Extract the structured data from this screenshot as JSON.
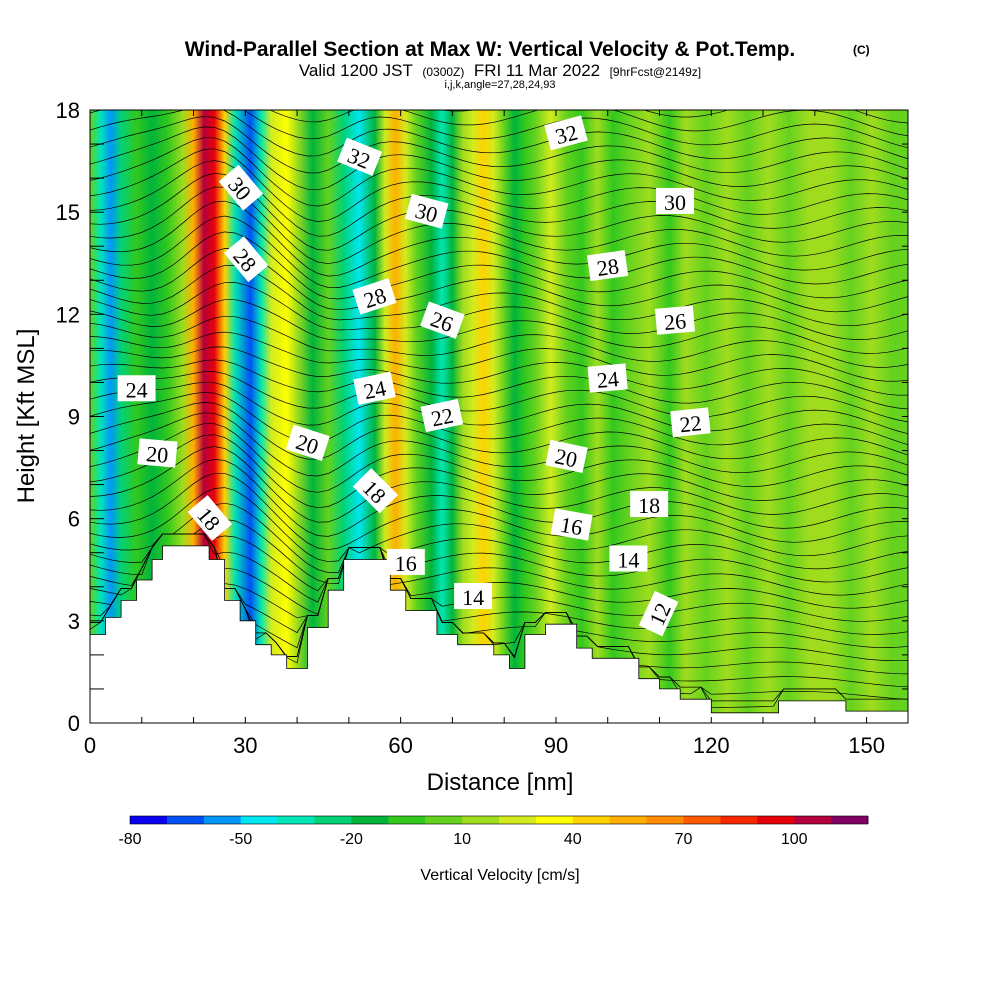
{
  "chart_data": {
    "type": "heatmap",
    "title": "Wind-Parallel Section at Max W: Vertical Velocity & Pot.Temp.",
    "title_mark": "(C)",
    "subtitle": {
      "valid": "Valid 1200 JST",
      "utc": "(0300Z)",
      "date": "FRI 11 Mar 2022",
      "fcst": "[9hrFcst@2149z]",
      "indices": "i,j,k,angle=27,28,24,93"
    },
    "xlabel": "Distance [nm]",
    "ylabel": "Height [Kft MSL]",
    "xlim": [
      0,
      158
    ],
    "ylim": [
      0,
      18
    ],
    "xticks": [
      "0",
      "30",
      "60",
      "90",
      "120",
      "150"
    ],
    "xtick_values": [
      0,
      30,
      60,
      90,
      120,
      150
    ],
    "yticks": [
      "0",
      "3",
      "6",
      "9",
      "12",
      "15",
      "18"
    ],
    "ytick_values": [
      0,
      3,
      6,
      9,
      12,
      15,
      18
    ],
    "colorbar": {
      "label": "Vertical Velocity [cm/s]",
      "tick_labels": [
        "-80",
        "-50",
        "-20",
        "10",
        "40",
        "70",
        "100"
      ],
      "tick_values": [
        -80,
        -50,
        -20,
        10,
        40,
        70,
        100
      ],
      "levels": [
        -80,
        -70,
        -60,
        -50,
        -40,
        -30,
        -20,
        -10,
        0,
        10,
        20,
        30,
        40,
        50,
        60,
        70,
        80,
        90,
        100,
        110,
        120
      ],
      "colors": [
        "#0a00f0",
        "#0050f5",
        "#0096f8",
        "#00e6f0",
        "#00e6b4",
        "#00d278",
        "#00b43c",
        "#32c81e",
        "#64d21e",
        "#a0dc1e",
        "#d2eb1e",
        "#ffff00",
        "#ffd200",
        "#ffaf00",
        "#ff8c00",
        "#ff5a00",
        "#f52800",
        "#e6000a",
        "#b4003c",
        "#820064"
      ]
    },
    "velocity_columns": [
      {
        "x": 0,
        "w": 5
      },
      {
        "x": 2,
        "w": -35
      },
      {
        "x": 4,
        "w": -55
      },
      {
        "x": 6,
        "w": -30
      },
      {
        "x": 9,
        "w": -10
      },
      {
        "x": 12,
        "w": -15
      },
      {
        "x": 15,
        "w": -5
      },
      {
        "x": 18,
        "w": 10
      },
      {
        "x": 20,
        "w": 50
      },
      {
        "x": 22,
        "w": 105
      },
      {
        "x": 24,
        "w": 90
      },
      {
        "x": 26,
        "w": 40
      },
      {
        "x": 28,
        "w": -35
      },
      {
        "x": 31,
        "w": -70
      },
      {
        "x": 33,
        "w": -40
      },
      {
        "x": 35,
        "w": 20
      },
      {
        "x": 38,
        "w": 35
      },
      {
        "x": 40,
        "w": 10
      },
      {
        "x": 43,
        "w": -12
      },
      {
        "x": 46,
        "w": 5
      },
      {
        "x": 49,
        "w": -25
      },
      {
        "x": 52,
        "w": -45
      },
      {
        "x": 55,
        "w": -15
      },
      {
        "x": 57,
        "w": 20
      },
      {
        "x": 59,
        "w": 55
      },
      {
        "x": 61,
        "w": 25
      },
      {
        "x": 63,
        "w": 0
      },
      {
        "x": 66,
        "w": -20
      },
      {
        "x": 68,
        "w": -35
      },
      {
        "x": 70,
        "w": -15
      },
      {
        "x": 72,
        "w": 10
      },
      {
        "x": 74,
        "w": 25
      },
      {
        "x": 76,
        "w": 42
      },
      {
        "x": 78,
        "w": 20
      },
      {
        "x": 80,
        "w": 0
      },
      {
        "x": 82,
        "w": -18
      },
      {
        "x": 84,
        "w": -5
      },
      {
        "x": 86,
        "w": 8
      },
      {
        "x": 89,
        "w": 20
      },
      {
        "x": 92,
        "w": 5
      },
      {
        "x": 95,
        "w": -5
      },
      {
        "x": 98,
        "w": 10
      },
      {
        "x": 101,
        "w": -5
      },
      {
        "x": 104,
        "w": 5
      },
      {
        "x": 108,
        "w": 10
      },
      {
        "x": 112,
        "w": -5
      },
      {
        "x": 115,
        "w": 12
      },
      {
        "x": 119,
        "w": 3
      },
      {
        "x": 123,
        "w": 10
      },
      {
        "x": 127,
        "w": 5
      },
      {
        "x": 131,
        "w": 12
      },
      {
        "x": 135,
        "w": 6
      },
      {
        "x": 139,
        "w": 10
      },
      {
        "x": 143,
        "w": 12
      },
      {
        "x": 147,
        "w": 5
      },
      {
        "x": 151,
        "w": 10
      },
      {
        "x": 155,
        "w": 0
      },
      {
        "x": 158,
        "w": 5
      }
    ],
    "terrain": [
      [
        0,
        2.6
      ],
      [
        3,
        2.6
      ],
      [
        3,
        3.1
      ],
      [
        6,
        3.1
      ],
      [
        6,
        3.6
      ],
      [
        9,
        3.6
      ],
      [
        9,
        4.2
      ],
      [
        12,
        4.2
      ],
      [
        12,
        4.8
      ],
      [
        14,
        4.8
      ],
      [
        14,
        5.2
      ],
      [
        23,
        5.2
      ],
      [
        23,
        4.8
      ],
      [
        26,
        4.8
      ],
      [
        26,
        3.6
      ],
      [
        29,
        3.6
      ],
      [
        29,
        3.0
      ],
      [
        32,
        3.0
      ],
      [
        32,
        2.3
      ],
      [
        35,
        2.3
      ],
      [
        35,
        2.0
      ],
      [
        38,
        2.0
      ],
      [
        38,
        1.6
      ],
      [
        42,
        1.6
      ],
      [
        42,
        2.8
      ],
      [
        46,
        2.8
      ],
      [
        46,
        3.9
      ],
      [
        49,
        3.9
      ],
      [
        49,
        4.8
      ],
      [
        58,
        4.8
      ],
      [
        58,
        3.9
      ],
      [
        61,
        3.9
      ],
      [
        61,
        3.3
      ],
      [
        67,
        3.3
      ],
      [
        67,
        2.6
      ],
      [
        71,
        2.6
      ],
      [
        71,
        2.3
      ],
      [
        78,
        2.3
      ],
      [
        78,
        2.0
      ],
      [
        81,
        2.0
      ],
      [
        81,
        1.6
      ],
      [
        84,
        1.6
      ],
      [
        84,
        2.6
      ],
      [
        88,
        2.6
      ],
      [
        88,
        2.9
      ],
      [
        94,
        2.9
      ],
      [
        94,
        2.2
      ],
      [
        97,
        2.2
      ],
      [
        97,
        1.9
      ],
      [
        106,
        1.9
      ],
      [
        106,
        1.3
      ],
      [
        110,
        1.3
      ],
      [
        110,
        1.0
      ],
      [
        114,
        1.0
      ],
      [
        114,
        0.7
      ],
      [
        120,
        0.7
      ],
      [
        120,
        0.3
      ],
      [
        133,
        0.3
      ],
      [
        133,
        0.65
      ],
      [
        146,
        0.65
      ],
      [
        146,
        0.35
      ],
      [
        158,
        0.35
      ]
    ],
    "theta_labels": [
      {
        "text": "32",
        "x": 52,
        "y": 16.6,
        "angle": 22
      },
      {
        "text": "30",
        "x": 29,
        "y": 15.7,
        "angle": 50
      },
      {
        "text": "30",
        "x": 65,
        "y": 15.0,
        "angle": 15
      },
      {
        "text": "32",
        "x": 92,
        "y": 17.3,
        "angle": -15
      },
      {
        "text": "30",
        "x": 113,
        "y": 15.3,
        "angle": 0
      },
      {
        "text": "28",
        "x": 30,
        "y": 13.6,
        "angle": 50
      },
      {
        "text": "28",
        "x": 55,
        "y": 12.5,
        "angle": -18
      },
      {
        "text": "26",
        "x": 68,
        "y": 11.8,
        "angle": 20
      },
      {
        "text": "28",
        "x": 100,
        "y": 13.4,
        "angle": -8
      },
      {
        "text": "26",
        "x": 113,
        "y": 11.8,
        "angle": -5
      },
      {
        "text": "24",
        "x": 9,
        "y": 9.8,
        "angle": 0
      },
      {
        "text": "24",
        "x": 55,
        "y": 9.8,
        "angle": -12
      },
      {
        "text": "22",
        "x": 68,
        "y": 9.0,
        "angle": -12
      },
      {
        "text": "24",
        "x": 100,
        "y": 10.1,
        "angle": -5
      },
      {
        "text": "22",
        "x": 116,
        "y": 8.8,
        "angle": -6
      },
      {
        "text": "20",
        "x": 13,
        "y": 7.9,
        "angle": 5
      },
      {
        "text": "20",
        "x": 42,
        "y": 8.2,
        "angle": 18
      },
      {
        "text": "20",
        "x": 92,
        "y": 7.8,
        "angle": 12
      },
      {
        "text": "18",
        "x": 23,
        "y": 6.0,
        "angle": 50
      },
      {
        "text": "18",
        "x": 55,
        "y": 6.8,
        "angle": 45
      },
      {
        "text": "18",
        "x": 108,
        "y": 6.4,
        "angle": 0
      },
      {
        "text": "16",
        "x": 61,
        "y": 4.7,
        "angle": 0
      },
      {
        "text": "16",
        "x": 93,
        "y": 5.8,
        "angle": 10
      },
      {
        "text": "14",
        "x": 74,
        "y": 3.7,
        "angle": 0
      },
      {
        "text": "14",
        "x": 104,
        "y": 4.8,
        "angle": 0
      },
      {
        "text": "12",
        "x": 110,
        "y": 3.2,
        "angle": -65
      }
    ]
  }
}
